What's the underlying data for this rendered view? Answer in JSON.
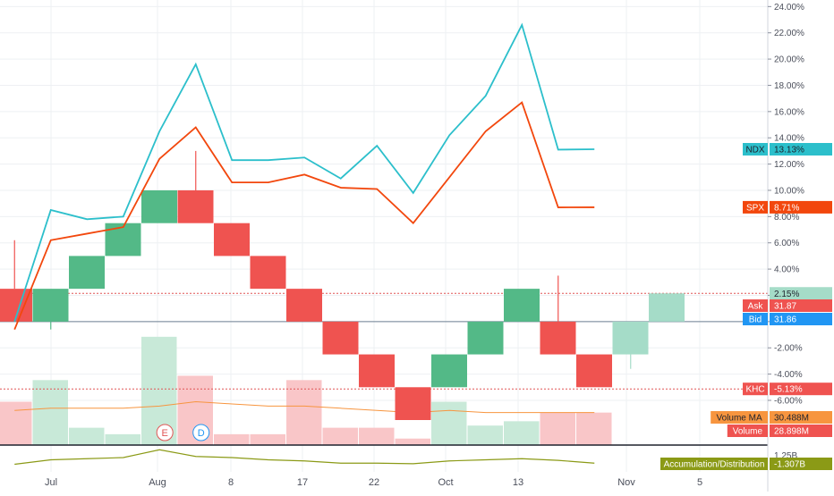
{
  "chart_data": {
    "type": "renko-comparison",
    "symbol": "KHC",
    "ylim_percent": [
      -7.5,
      24.5
    ],
    "y_ticks": [
      24,
      22,
      20,
      18,
      16,
      14,
      12,
      10,
      8,
      6,
      4,
      2,
      0,
      -2,
      -4,
      -6
    ],
    "y_tick_labels": [
      "24.00%",
      "22.00%",
      "20.00%",
      "18.00%",
      "16.00%",
      "14.00%",
      "12.00%",
      "10.00%",
      "8.00%",
      "6.00%",
      "4.00%",
      "",
      "",
      "-2.00%",
      "-4.00%",
      "-6.00%"
    ],
    "x_labels": [
      "Jul",
      "Aug",
      "8",
      "17",
      "22",
      "Oct",
      "13",
      "Nov",
      "5"
    ],
    "renko_bricks": [
      {
        "dir": "down",
        "open": 2.5,
        "close": 0.0
      },
      {
        "dir": "up",
        "open": 0.0,
        "close": 2.5
      },
      {
        "dir": "up",
        "open": 2.5,
        "close": 5.0
      },
      {
        "dir": "up",
        "open": 5.0,
        "close": 7.5
      },
      {
        "dir": "up",
        "open": 7.5,
        "close": 10.0
      },
      {
        "dir": "down",
        "open": 10.0,
        "close": 7.5
      },
      {
        "dir": "down",
        "open": 7.5,
        "close": 5.0
      },
      {
        "dir": "down",
        "open": 5.0,
        "close": 2.5
      },
      {
        "dir": "down",
        "open": 2.5,
        "close": 0.0
      },
      {
        "dir": "down",
        "open": 0.0,
        "close": -2.5
      },
      {
        "dir": "down",
        "open": -2.5,
        "close": -5.0
      },
      {
        "dir": "down",
        "open": -5.0,
        "close": -7.5
      },
      {
        "dir": "up",
        "open": -5.0,
        "close": -2.5
      },
      {
        "dir": "up",
        "open": -2.5,
        "close": 0.0
      },
      {
        "dir": "up",
        "open": 0.0,
        "close": 2.5
      },
      {
        "dir": "down",
        "open": 0.0,
        "close": -2.5
      },
      {
        "dir": "down",
        "open": -2.5,
        "close": -5.0
      },
      {
        "dir": "up-projected",
        "open": -2.5,
        "close": 0.0
      },
      {
        "dir": "up-projected",
        "open": 0.0,
        "close": 2.15
      }
    ],
    "wicks": [
      {
        "brick": 0,
        "high": 6.2,
        "low": 2.5
      },
      {
        "brick": 1,
        "high": 0.0,
        "low": -0.6
      },
      {
        "brick": 5,
        "high": 13.0,
        "low": 10.0
      },
      {
        "brick": 15,
        "high": 3.5,
        "low": 0.0
      },
      {
        "brick": 17,
        "high": -2.5,
        "low": -3.6
      }
    ],
    "series": [
      {
        "name": "NDX",
        "color": "#2cbfcb",
        "values": [
          0.0,
          8.5,
          7.8,
          8.0,
          14.5,
          19.6,
          12.3,
          12.3,
          12.5,
          10.9,
          13.4,
          9.8,
          14.2,
          17.2,
          22.6,
          13.1,
          13.13
        ]
      },
      {
        "name": "SPX",
        "color": "#f2470d",
        "values": [
          -0.6,
          6.2,
          6.7,
          7.2,
          12.4,
          14.8,
          10.6,
          10.6,
          11.2,
          10.2,
          10.1,
          7.5,
          11.0,
          14.5,
          16.7,
          8.7,
          8.71
        ]
      }
    ],
    "line_brick_index": [
      0.5,
      1.5,
      2.5,
      3.5,
      4.5,
      5.5,
      6.5,
      7.5,
      8.5,
      9.5,
      10.5,
      11.5,
      12.5,
      13.5,
      14.5,
      15.5,
      16.5
    ],
    "volume_bars": [
      {
        "value": 2,
        "color": "red"
      },
      {
        "value": 3,
        "color": "green"
      },
      {
        "value": 0.8,
        "color": "green"
      },
      {
        "value": 0.5,
        "color": "green"
      },
      {
        "value": 5,
        "color": "green"
      },
      {
        "value": 3.2,
        "color": "red"
      },
      {
        "value": 0.5,
        "color": "red"
      },
      {
        "value": 0.5,
        "color": "red"
      },
      {
        "value": 3,
        "color": "red"
      },
      {
        "value": 0.8,
        "color": "red"
      },
      {
        "value": 0.8,
        "color": "red"
      },
      {
        "value": 0.3,
        "color": "red"
      },
      {
        "value": 2,
        "color": "green"
      },
      {
        "value": 0.9,
        "color": "green"
      },
      {
        "value": 1.1,
        "color": "green"
      },
      {
        "value": 1.5,
        "color": "red"
      },
      {
        "value": 1.5,
        "color": "red"
      }
    ],
    "volume_ma": [
      1.6,
      1.7,
      1.7,
      1.7,
      1.8,
      2.0,
      1.9,
      1.8,
      1.8,
      1.7,
      1.6,
      1.5,
      1.6,
      1.5,
      1.5,
      1.5,
      1.5
    ],
    "accdist": [
      0.2,
      0.6,
      0.7,
      0.8,
      1.5,
      0.9,
      0.8,
      0.6,
      0.5,
      0.3,
      0.3,
      0.25,
      0.5,
      0.6,
      0.7,
      0.55,
      0.3
    ],
    "event_markers": [
      {
        "label": "E",
        "color": "#e05555",
        "x_brick": 4.4
      },
      {
        "label": "D",
        "color": "#2196f3",
        "x_brick": 5.4
      }
    ],
    "reference_lines": [
      {
        "value": 2.15,
        "color": "#e05555",
        "style": "dotted"
      },
      {
        "value": 0.0,
        "color": "#6e7f92",
        "style": "solid"
      },
      {
        "value": -5.13,
        "color": "#e05555",
        "style": "dotted"
      }
    ],
    "price_labels": [
      {
        "text": "NDX",
        "value": "13.13%",
        "bg": "#2cbfcb",
        "fg": "#1e222d",
        "y": 13.13
      },
      {
        "text": "SPX",
        "value": "8.71%",
        "bg": "#f2470d",
        "fg": "#ffffff",
        "y": 8.71
      },
      {
        "text": "",
        "value": "2.15%",
        "bg": "#a5dcc8",
        "fg": "#1e222d",
        "y": 2.15
      },
      {
        "text": "Ask",
        "value": "31.87",
        "bg": "#ef5350",
        "fg": "#ffffff",
        "y": 1.15
      },
      {
        "text": "Bid",
        "value": "31.86",
        "bg": "#2196f3",
        "fg": "#ffffff",
        "y": 0.0
      },
      {
        "text": "KHC",
        "value": "-5.13%",
        "bg": "#ef5350",
        "fg": "#ffffff",
        "y": -5.13
      },
      {
        "text": "Volume MA",
        "value": "30.488M",
        "bg": "#f7953f",
        "fg": "#1e222d",
        "pane": "volume",
        "row": 0
      },
      {
        "text": "Volume",
        "value": "28.898M",
        "bg": "#ef5350",
        "fg": "#ffffff",
        "pane": "volume",
        "row": 1
      }
    ],
    "accdist_label": {
      "text": "Accumulation/Distribution",
      "value": "-1.307B",
      "bg": "#8b9a16",
      "fg": "#ffffff"
    },
    "accdist_scale_label": "1.25B",
    "colors": {
      "up": "#53b987",
      "down": "#ef5350",
      "up_projected": "#a5dcc8",
      "vol_up": "#c8e9d8",
      "vol_down": "#f9c6c8",
      "volume_ma": "#f7953f",
      "accdist": "#8b9a16",
      "grid": "#eef0f3",
      "axis_text": "#4a4e5a"
    }
  }
}
